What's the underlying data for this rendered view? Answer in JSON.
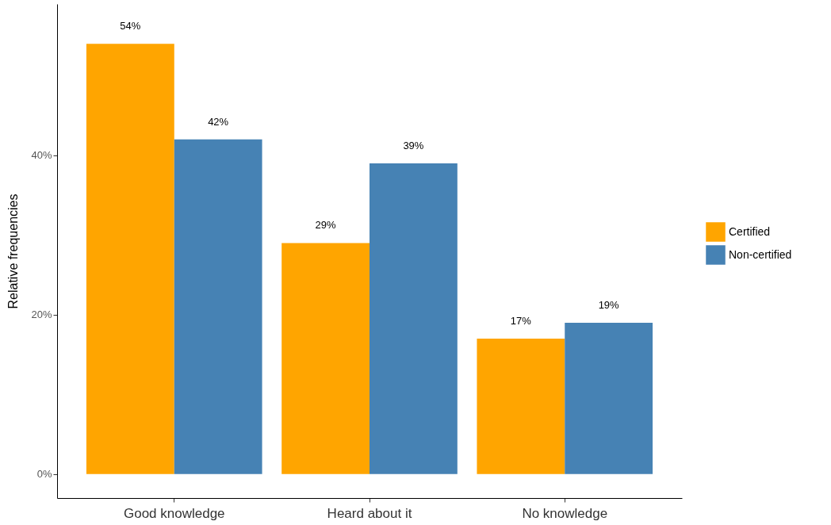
{
  "chart_data": {
    "type": "bar",
    "ylabel": "Relative frequencies",
    "categories": [
      "Good knowledge",
      "Heard about it",
      "No knowledge"
    ],
    "series": [
      {
        "name": "Certified",
        "color": "#ffa500",
        "values": [
          54,
          29,
          17
        ],
        "value_labels": [
          "54%",
          "29%",
          "17%"
        ]
      },
      {
        "name": "Non-certified",
        "color": "#4682b4",
        "values": [
          42,
          39,
          19
        ],
        "value_labels": [
          "42%",
          "39%",
          "19%"
        ]
      }
    ],
    "ylim": [
      -3,
      59
    ],
    "yticks": [
      {
        "value": 0,
        "label": "0%"
      },
      {
        "value": 20,
        "label": "20%"
      },
      {
        "value": 40,
        "label": "40%"
      }
    ],
    "legend": "right",
    "grid": false
  }
}
